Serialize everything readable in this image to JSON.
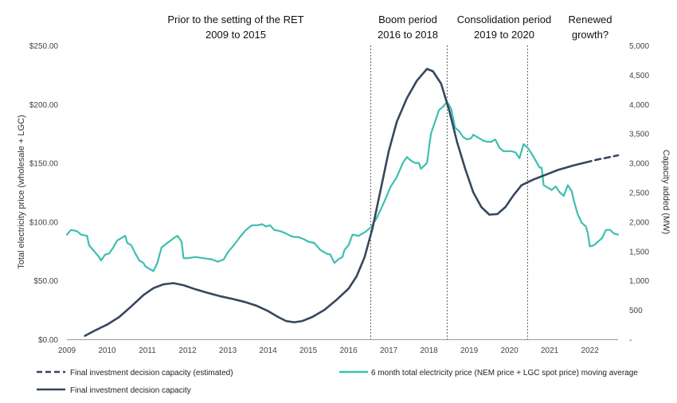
{
  "chart_data": {
    "type": "line",
    "title": "",
    "periods": [
      {
        "label_line1": "Prior to the setting of the RET",
        "label_line2": "2009 to 2015"
      },
      {
        "label_line1": "Boom period",
        "label_line2": "2016 to 2018"
      },
      {
        "label_line1": "Consolidation period",
        "label_line2": "2019 to 2020"
      },
      {
        "label_line1": "Renewed",
        "label_line2": "growth?"
      }
    ],
    "period_dividers_x": [
      2016.55,
      2018.45,
      2020.45
    ],
    "xlim": [
      2009,
      2022.7
    ],
    "x_ticks": [
      "2009",
      "2010",
      "2011",
      "2012",
      "2013",
      "2014",
      "2015",
      "2016",
      "2017",
      "2018",
      "2019",
      "2020",
      "2021",
      "2022"
    ],
    "y_left": {
      "label": "Total electricity price (wholesale + LGC)",
      "lim": [
        0,
        250
      ],
      "ticks": [
        "$0.00",
        "$50.00",
        "$100.00",
        "$150.00",
        "$200.00",
        "$250.00"
      ]
    },
    "y_right": {
      "label": "Capacity added (MW)",
      "lim": [
        0,
        5000
      ],
      "ticks": [
        "-",
        "500",
        "1,000",
        "1,500",
        "2,000",
        "2,500",
        "3,000",
        "3,500",
        "4,000",
        "4,500",
        "5,000"
      ]
    },
    "series": [
      {
        "name": "6 month total electricity price (NEM price + LGC spot price) moving average",
        "axis": "left",
        "color": "#3dbfb0",
        "points": [
          [
            2009.0,
            89
          ],
          [
            2009.1,
            93
          ],
          [
            2009.25,
            92
          ],
          [
            2009.35,
            89
          ],
          [
            2009.5,
            88
          ],
          [
            2009.55,
            80
          ],
          [
            2009.7,
            74
          ],
          [
            2009.8,
            70
          ],
          [
            2009.85,
            67
          ],
          [
            2009.95,
            72
          ],
          [
            2010.05,
            73
          ],
          [
            2010.15,
            78
          ],
          [
            2010.25,
            84
          ],
          [
            2010.35,
            86
          ],
          [
            2010.45,
            88
          ],
          [
            2010.5,
            82
          ],
          [
            2010.6,
            80
          ],
          [
            2010.7,
            73
          ],
          [
            2010.8,
            67
          ],
          [
            2010.9,
            65
          ],
          [
            2010.95,
            62
          ],
          [
            2011.05,
            60
          ],
          [
            2011.15,
            58
          ],
          [
            2011.25,
            65
          ],
          [
            2011.35,
            78
          ],
          [
            2011.5,
            82
          ],
          [
            2011.65,
            86
          ],
          [
            2011.75,
            88
          ],
          [
            2011.85,
            83
          ],
          [
            2011.9,
            69
          ],
          [
            2012.0,
            69
          ],
          [
            2012.2,
            70
          ],
          [
            2012.4,
            69
          ],
          [
            2012.6,
            68
          ],
          [
            2012.75,
            66
          ],
          [
            2012.9,
            68
          ],
          [
            2013.0,
            74
          ],
          [
            2013.15,
            80
          ],
          [
            2013.3,
            87
          ],
          [
            2013.45,
            93
          ],
          [
            2013.6,
            97
          ],
          [
            2013.75,
            97
          ],
          [
            2013.85,
            98
          ],
          [
            2013.95,
            96
          ],
          [
            2014.05,
            97
          ],
          [
            2014.15,
            93
          ],
          [
            2014.3,
            92
          ],
          [
            2014.45,
            90
          ],
          [
            2014.55,
            88
          ],
          [
            2014.65,
            87
          ],
          [
            2014.75,
            87
          ],
          [
            2014.9,
            85
          ],
          [
            2015.0,
            83
          ],
          [
            2015.15,
            82
          ],
          [
            2015.3,
            76
          ],
          [
            2015.45,
            73
          ],
          [
            2015.55,
            72
          ],
          [
            2015.65,
            65
          ],
          [
            2015.75,
            68
          ],
          [
            2015.85,
            70
          ],
          [
            2015.9,
            76
          ],
          [
            2016.0,
            80
          ],
          [
            2016.1,
            89
          ],
          [
            2016.25,
            88
          ],
          [
            2016.4,
            91
          ],
          [
            2016.55,
            95
          ],
          [
            2016.7,
            103
          ],
          [
            2016.85,
            114
          ],
          [
            2016.95,
            122
          ],
          [
            2017.05,
            130
          ],
          [
            2017.2,
            138
          ],
          [
            2017.35,
            150
          ],
          [
            2017.45,
            155
          ],
          [
            2017.55,
            152
          ],
          [
            2017.65,
            150
          ],
          [
            2017.75,
            150
          ],
          [
            2017.8,
            145
          ],
          [
            2017.95,
            150
          ],
          [
            2018.05,
            175
          ],
          [
            2018.15,
            185
          ],
          [
            2018.25,
            195
          ],
          [
            2018.35,
            198
          ],
          [
            2018.45,
            202
          ],
          [
            2018.55,
            196
          ],
          [
            2018.65,
            180
          ],
          [
            2018.75,
            177
          ],
          [
            2018.85,
            172
          ],
          [
            2018.95,
            170
          ],
          [
            2019.05,
            171
          ],
          [
            2019.1,
            174
          ],
          [
            2019.2,
            172
          ],
          [
            2019.35,
            169
          ],
          [
            2019.45,
            168
          ],
          [
            2019.55,
            168
          ],
          [
            2019.65,
            170
          ],
          [
            2019.75,
            163
          ],
          [
            2019.85,
            160
          ],
          [
            2019.95,
            160
          ],
          [
            2020.05,
            160
          ],
          [
            2020.15,
            159
          ],
          [
            2020.25,
            154
          ],
          [
            2020.35,
            166
          ],
          [
            2020.45,
            163
          ],
          [
            2020.55,
            158
          ],
          [
            2020.65,
            152
          ],
          [
            2020.75,
            146
          ],
          [
            2020.8,
            146
          ],
          [
            2020.85,
            131
          ],
          [
            2020.95,
            129
          ],
          [
            2021.05,
            127
          ],
          [
            2021.15,
            130
          ],
          [
            2021.25,
            125
          ],
          [
            2021.35,
            122
          ],
          [
            2021.45,
            131
          ],
          [
            2021.55,
            126
          ],
          [
            2021.6,
            118
          ],
          [
            2021.7,
            106
          ],
          [
            2021.8,
            99
          ],
          [
            2021.9,
            96
          ],
          [
            2021.95,
            90
          ],
          [
            2022.0,
            79
          ],
          [
            2022.1,
            80
          ],
          [
            2022.2,
            83
          ],
          [
            2022.3,
            86
          ],
          [
            2022.4,
            93
          ],
          [
            2022.5,
            93
          ],
          [
            2022.6,
            90
          ],
          [
            2022.7,
            89
          ]
        ]
      },
      {
        "name": "Final investment decision capacity",
        "axis": "right",
        "color": "#37475e",
        "points": [
          [
            2009.45,
            60
          ],
          [
            2009.7,
            150
          ],
          [
            2010.0,
            250
          ],
          [
            2010.3,
            380
          ],
          [
            2010.6,
            560
          ],
          [
            2010.9,
            750
          ],
          [
            2011.15,
            870
          ],
          [
            2011.4,
            935
          ],
          [
            2011.65,
            955
          ],
          [
            2011.9,
            920
          ],
          [
            2012.2,
            850
          ],
          [
            2012.5,
            790
          ],
          [
            2012.8,
            735
          ],
          [
            2013.1,
            690
          ],
          [
            2013.4,
            640
          ],
          [
            2013.7,
            575
          ],
          [
            2014.0,
            480
          ],
          [
            2014.25,
            380
          ],
          [
            2014.45,
            310
          ],
          [
            2014.65,
            290
          ],
          [
            2014.85,
            310
          ],
          [
            2015.1,
            380
          ],
          [
            2015.4,
            500
          ],
          [
            2015.7,
            670
          ],
          [
            2016.0,
            860
          ],
          [
            2016.2,
            1070
          ],
          [
            2016.4,
            1400
          ],
          [
            2016.6,
            1900
          ],
          [
            2016.8,
            2550
          ],
          [
            2017.0,
            3200
          ],
          [
            2017.2,
            3700
          ],
          [
            2017.45,
            4100
          ],
          [
            2017.7,
            4400
          ],
          [
            2017.95,
            4600
          ],
          [
            2018.1,
            4560
          ],
          [
            2018.3,
            4350
          ],
          [
            2018.5,
            3900
          ],
          [
            2018.7,
            3350
          ],
          [
            2018.9,
            2900
          ],
          [
            2019.1,
            2500
          ],
          [
            2019.3,
            2250
          ],
          [
            2019.5,
            2120
          ],
          [
            2019.7,
            2130
          ],
          [
            2019.9,
            2250
          ],
          [
            2020.1,
            2450
          ],
          [
            2020.3,
            2620
          ],
          [
            2020.6,
            2720
          ],
          [
            2020.9,
            2800
          ],
          [
            2021.2,
            2880
          ],
          [
            2021.6,
            2960
          ],
          [
            2021.9,
            3010
          ]
        ]
      },
      {
        "name": "Final investment decision capacity (estimated)",
        "axis": "right",
        "color": "#37475e",
        "dashed": true,
        "points": [
          [
            2021.9,
            3010
          ],
          [
            2022.2,
            3060
          ],
          [
            2022.5,
            3100
          ],
          [
            2022.7,
            3130
          ]
        ]
      }
    ],
    "legend": [
      {
        "label": "Final investment decision capacity (estimated)",
        "style": "dashed",
        "color": "#37475e"
      },
      {
        "label": "6 month total electricity price (NEM price + LGC spot price) moving average",
        "style": "solid",
        "color": "#3dbfb0"
      },
      {
        "label": "Final investment decision capacity",
        "style": "solid",
        "color": "#37475e"
      }
    ]
  }
}
